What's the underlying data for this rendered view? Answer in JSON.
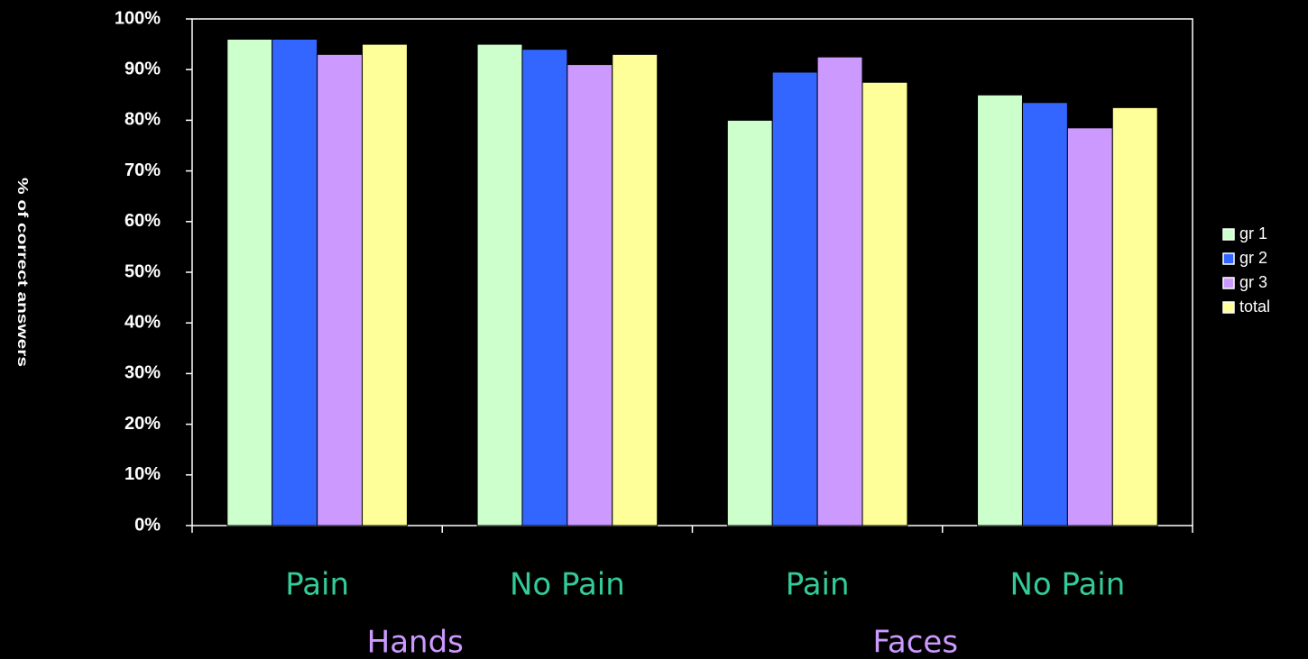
{
  "chart_data": {
    "type": "bar",
    "y_label": "% of correct answers",
    "categories": [
      "Pain",
      "No Pain",
      "Pain",
      "No Pain"
    ],
    "group_labels": [
      "Hands",
      "Faces"
    ],
    "series": [
      {
        "name": "gr 1",
        "color": "#ccffcc",
        "values": [
          96,
          95,
          80,
          85
        ]
      },
      {
        "name": "gr 2",
        "color": "#3366ff",
        "values": [
          96,
          94,
          89.5,
          83.5
        ]
      },
      {
        "name": "gr 3",
        "color": "#cc99ff",
        "values": [
          93,
          91,
          92.5,
          78.5
        ]
      },
      {
        "name": "total",
        "color": "#ffff99",
        "values": [
          95,
          93,
          87.5,
          82.5
        ]
      }
    ],
    "ylim": [
      0,
      100
    ],
    "yticks": [
      {
        "value": 0,
        "label": "0%"
      },
      {
        "value": 10,
        "label": "10%"
      },
      {
        "value": 20,
        "label": "20%"
      },
      {
        "value": 30,
        "label": "30%"
      },
      {
        "value": 40,
        "label": "40%"
      },
      {
        "value": 50,
        "label": "50%"
      },
      {
        "value": 60,
        "label": "60%"
      },
      {
        "value": 70,
        "label": "70%"
      },
      {
        "value": 80,
        "label": "80%"
      },
      {
        "value": 90,
        "label": "90%"
      },
      {
        "value": 100,
        "label": "100%"
      }
    ],
    "legend": "right"
  }
}
